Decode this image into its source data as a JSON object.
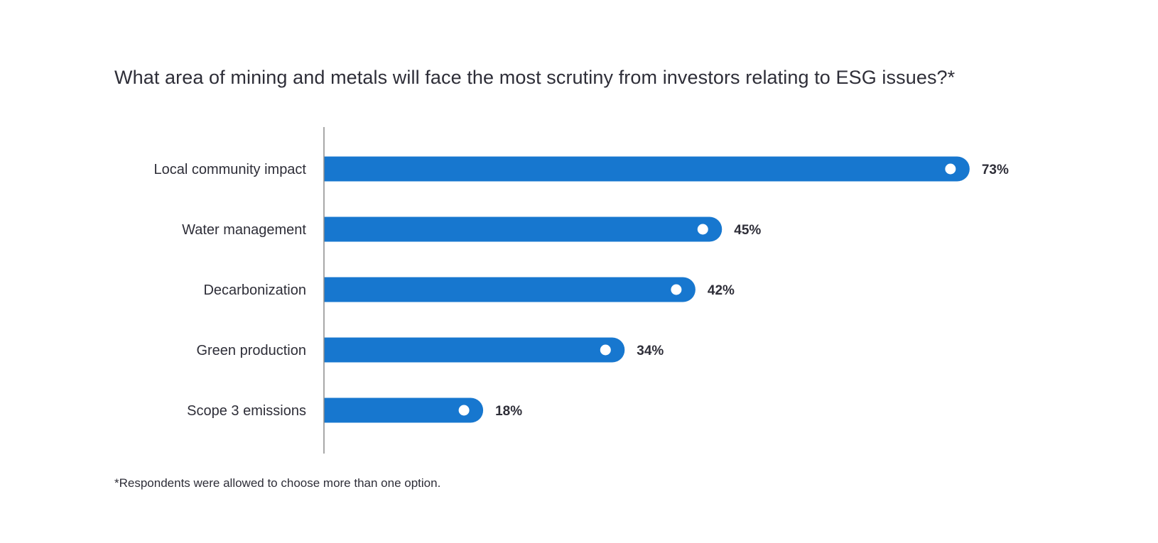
{
  "colors": {
    "bar": "#1777cf",
    "marker": "#ffffff",
    "axis": "#8c8c8c",
    "text": "#2e2e38"
  },
  "chart_data": {
    "type": "bar",
    "orientation": "horizontal",
    "title": "What area of mining and metals will face the most scrutiny from investors relating to ESG issues?*",
    "categories": [
      "Local community impact",
      "Water management",
      "Decarbonization",
      "Green production",
      "Scope 3 emissions"
    ],
    "values": [
      73,
      45,
      42,
      34,
      18
    ],
    "value_labels": [
      "73%",
      "45%",
      "42%",
      "34%",
      "18%"
    ],
    "unit": "%",
    "grid": false,
    "legend": "none",
    "footnote": "*Respondents were allowed to choose more than one option."
  }
}
